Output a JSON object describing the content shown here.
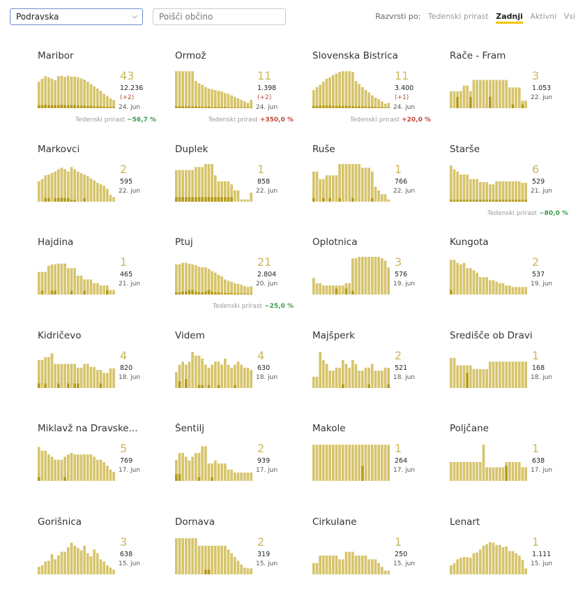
{
  "filters": {
    "region": "Podravska",
    "search_placeholder": "Poišči občino",
    "sort_label": "Razvrsti po:",
    "sort_options": [
      {
        "label": "Tedenski prirast",
        "active": false
      },
      {
        "label": "Zadnji",
        "active": true
      },
      {
        "label": "Aktivni",
        "active": false
      },
      {
        "label": "Vsi",
        "active": false
      }
    ]
  },
  "colors": {
    "bar": "#d6c46c",
    "bar_dark": "#b59a18",
    "accent": "#f5c400"
  },
  "municipalities": [
    {
      "name": "Maribor",
      "active": "43",
      "total": "12.236",
      "delta": "(+2)",
      "date": "24. jun",
      "weekly_label": "Tedenski prirast",
      "weekly_value": "−56,7 %",
      "weekly_dir": "down",
      "bars": [
        0.7,
        0.78,
        0.85,
        0.82,
        0.78,
        0.74,
        0.85,
        0.86,
        0.83,
        0.86,
        0.84,
        0.84,
        0.82,
        0.79,
        0.76,
        0.7,
        0.64,
        0.58,
        0.52,
        0.46,
        0.38,
        0.32,
        0.26,
        0.22
      ],
      "overlay": [
        0.08,
        0.08,
        0.09,
        0.08,
        0.08,
        0.08,
        0.08,
        0.09,
        0.08,
        0.08,
        0.08,
        0.08,
        0.07,
        0.07,
        0.07,
        0.06,
        0.06,
        0.05,
        0.05,
        0.05,
        0.04,
        0.04,
        0.03,
        0.03
      ]
    },
    {
      "name": "Ormož",
      "active": "11",
      "total": "1.398",
      "delta": "(+2)",
      "date": "24. jun",
      "weekly_label": "Tedenski prirast",
      "weekly_value": "+350,0 %",
      "weekly_dir": "up",
      "bars": [
        0.98,
        0.98,
        0.98,
        0.98,
        0.98,
        0.98,
        0.72,
        0.66,
        0.62,
        0.56,
        0.52,
        0.5,
        0.48,
        0.46,
        0.44,
        0.4,
        0.38,
        0.34,
        0.3,
        0.26,
        0.22,
        0.18,
        0.14,
        0.22
      ],
      "overlay": [
        0.05,
        0.05,
        0.05,
        0.05,
        0.05,
        0.05,
        0.05,
        0.04,
        0.04,
        0.04,
        0.04,
        0.03,
        0.03,
        0.03,
        0.03,
        0.03,
        0.02,
        0.02,
        0.02,
        0.02,
        0.02,
        0.02,
        0.02,
        0.02
      ]
    },
    {
      "name": "Slovenska Bistrica",
      "active": "11",
      "total": "3.400",
      "delta": "(+1)",
      "date": "24. jun",
      "weekly_label": "Tedenski prirast",
      "weekly_value": "+20,0 %",
      "weekly_dir": "up",
      "bars": [
        0.48,
        0.56,
        0.62,
        0.7,
        0.78,
        0.82,
        0.88,
        0.92,
        0.96,
        0.98,
        0.98,
        0.98,
        0.96,
        0.72,
        0.64,
        0.56,
        0.48,
        0.42,
        0.34,
        0.28,
        0.24,
        0.18,
        0.12,
        0.14
      ],
      "overlay": [
        0.06,
        0.06,
        0.07,
        0.07,
        0.07,
        0.07,
        0.06,
        0.06,
        0.06,
        0.06,
        0.06,
        0.06,
        0.05,
        0.05,
        0.05,
        0.05,
        0.04,
        0.04,
        0.04,
        0.03,
        0.03,
        0.03,
        0.02,
        0.02
      ]
    },
    {
      "name": "Rače - Fram",
      "active": "3",
      "total": "1.053",
      "date": "22. jun",
      "bars": [
        0.45,
        0.45,
        0.45,
        0.45,
        0.6,
        0.6,
        0.45,
        0.75,
        0.75,
        0.75,
        0.75,
        0.75,
        0.75,
        0.75,
        0.75,
        0.75,
        0.75,
        0.75,
        0.55,
        0.55,
        0.55,
        0.55,
        0.2,
        0.2
      ],
      "overlay": [
        0,
        0,
        0.3,
        0,
        0,
        0,
        0.3,
        0,
        0,
        0,
        0,
        0,
        0.3,
        0,
        0,
        0,
        0,
        0,
        0,
        0.1,
        0,
        0,
        0.1,
        0
      ]
    },
    {
      "name": "Markovci",
      "active": "2",
      "total": "595",
      "date": "22. jun",
      "bars": [
        0.54,
        0.6,
        0.7,
        0.72,
        0.76,
        0.8,
        0.86,
        0.9,
        0.86,
        0.8,
        0.92,
        0.86,
        0.8,
        0.76,
        0.72,
        0.68,
        0.62,
        0.56,
        0.5,
        0.46,
        0.42,
        0.34,
        0.18,
        0.12
      ],
      "overlay": [
        0,
        0,
        0.1,
        0.1,
        0,
        0.1,
        0.1,
        0.1,
        0.1,
        0.1,
        0.05,
        0.05,
        0,
        0,
        0.1,
        0,
        0,
        0,
        0,
        0,
        0,
        0,
        0,
        0
      ]
    },
    {
      "name": "Duplek",
      "active": "1",
      "total": "858",
      "date": "22. jun",
      "bars": [
        0.84,
        0.84,
        0.84,
        0.84,
        0.84,
        0.84,
        0.92,
        0.92,
        0.92,
        1.0,
        1.0,
        1.0,
        0.7,
        0.54,
        0.54,
        0.54,
        0.54,
        0.46,
        0.3,
        0.3,
        0.06,
        0.06,
        0.06,
        0.24
      ],
      "overlay": [
        0.12,
        0.12,
        0.12,
        0.12,
        0.12,
        0.12,
        0.12,
        0.12,
        0.12,
        0.12,
        0.12,
        0.12,
        0.12,
        0.12,
        0.12,
        0.12,
        0.12,
        0.12,
        0,
        0,
        0,
        0,
        0,
        0
      ]
    },
    {
      "name": "Ruše",
      "active": "1",
      "total": "766",
      "date": "22. jun",
      "bars": [
        0.8,
        0.8,
        0.6,
        0.6,
        0.7,
        0.7,
        0.7,
        0.7,
        1.0,
        1.0,
        1.0,
        1.0,
        1.0,
        1.0,
        1.0,
        0.9,
        0.9,
        0.9,
        0.8,
        0.4,
        0.3,
        0.2,
        0.2,
        0.06
      ],
      "overlay": [
        0.1,
        0,
        0,
        0.1,
        0,
        0.1,
        0,
        0,
        0.1,
        0,
        0,
        0,
        0.1,
        0,
        0,
        0,
        0,
        0,
        0.1,
        0,
        0,
        0,
        0,
        0
      ]
    },
    {
      "name": "Starše",
      "active": "6",
      "total": "529",
      "date": "21. jun",
      "weekly_label": "Tedenski prirast",
      "weekly_value": "−80,0 %",
      "weekly_dir": "down",
      "bars": [
        0.96,
        0.86,
        0.8,
        0.72,
        0.72,
        0.72,
        0.6,
        0.6,
        0.6,
        0.52,
        0.52,
        0.52,
        0.46,
        0.46,
        0.54,
        0.54,
        0.54,
        0.54,
        0.54,
        0.54,
        0.54,
        0.54,
        0.5,
        0.5
      ],
      "overlay": [
        0.05,
        0.05,
        0.05,
        0.05,
        0.05,
        0.05,
        0.05,
        0.05,
        0.05,
        0.05,
        0.05,
        0.05,
        0.05,
        0.05,
        0.05,
        0.05,
        0.05,
        0.05,
        0.05,
        0.05,
        0.05,
        0.05,
        0.05,
        0.05
      ]
    },
    {
      "name": "Hajdina",
      "active": "1",
      "total": "465",
      "date": "21. jun",
      "bars": [
        0.6,
        0.6,
        0.6,
        0.76,
        0.8,
        0.8,
        0.82,
        0.82,
        0.82,
        0.7,
        0.7,
        0.7,
        0.5,
        0.5,
        0.4,
        0.4,
        0.4,
        0.3,
        0.3,
        0.24,
        0.24,
        0.24,
        0.12,
        0.12
      ],
      "overlay": [
        0,
        0.1,
        0,
        0,
        0.1,
        0.1,
        0,
        0,
        0,
        0,
        0.1,
        0,
        0,
        0,
        0.1,
        0,
        0,
        0,
        0,
        0,
        0,
        0.12,
        0,
        0
      ]
    },
    {
      "name": "Ptuj",
      "active": "21",
      "total": "2.804",
      "delta": "",
      "date": "20. jun",
      "weekly_label": "Tedenski prirast",
      "weekly_value": "−25,0 %",
      "weekly_dir": "down",
      "bars": [
        0.8,
        0.8,
        0.84,
        0.84,
        0.82,
        0.8,
        0.78,
        0.74,
        0.72,
        0.72,
        0.68,
        0.62,
        0.58,
        0.52,
        0.48,
        0.4,
        0.36,
        0.34,
        0.3,
        0.28,
        0.26,
        0.22,
        0.2,
        0.22
      ],
      "overlay": [
        0.06,
        0.06,
        0.08,
        0.08,
        0.12,
        0.12,
        0.08,
        0.06,
        0.06,
        0.08,
        0.12,
        0.08,
        0.06,
        0.06,
        0.04,
        0.04,
        0.04,
        0.04,
        0.03,
        0.03,
        0.03,
        0.03,
        0.02,
        0.02
      ]
    },
    {
      "name": "Oplotnica",
      "active": "3",
      "total": "576",
      "date": "19. jun",
      "bars": [
        0.44,
        0.3,
        0.3,
        0.24,
        0.24,
        0.24,
        0.24,
        0.24,
        0.24,
        0.24,
        0.3,
        0.3,
        0.96,
        0.96,
        1.0,
        1.0,
        1.0,
        1.0,
        1.0,
        1.0,
        1.0,
        0.96,
        0.9,
        0.72
      ],
      "overlay": [
        0,
        0,
        0,
        0,
        0,
        0,
        0,
        0.16,
        0,
        0,
        0.16,
        0,
        0.1,
        0,
        0,
        0,
        0,
        0,
        0,
        0,
        0,
        0,
        0,
        0
      ]
    },
    {
      "name": "Kungota",
      "active": "2",
      "total": "537",
      "date": "19. jun",
      "bars": [
        0.92,
        0.92,
        0.84,
        0.8,
        0.84,
        0.7,
        0.7,
        0.64,
        0.58,
        0.46,
        0.46,
        0.46,
        0.38,
        0.38,
        0.34,
        0.3,
        0.3,
        0.24,
        0.24,
        0.2,
        0.2,
        0.2,
        0.2,
        0.2
      ],
      "overlay": [
        0.12,
        0,
        0,
        0,
        0,
        0,
        0,
        0,
        0,
        0,
        0,
        0,
        0,
        0,
        0,
        0,
        0,
        0,
        0,
        0,
        0,
        0,
        0,
        0
      ]
    },
    {
      "name": "Kidričevo",
      "active": "4",
      "total": "820",
      "date": "18. jun",
      "bars": [
        0.74,
        0.74,
        0.82,
        0.82,
        0.92,
        0.64,
        0.64,
        0.64,
        0.64,
        0.64,
        0.64,
        0.64,
        0.54,
        0.54,
        0.64,
        0.64,
        0.56,
        0.56,
        0.48,
        0.48,
        0.4,
        0.4,
        0.52,
        0.52
      ],
      "overlay": [
        0.12,
        0,
        0.12,
        0,
        0,
        0,
        0.12,
        0,
        0,
        0.12,
        0,
        0.12,
        0.12,
        0,
        0,
        0,
        0,
        0,
        0,
        0.12,
        0,
        0,
        0,
        0
      ]
    },
    {
      "name": "Videm",
      "active": "4",
      "total": "630",
      "date": "18. jun",
      "bars": [
        0.42,
        0.62,
        0.7,
        0.62,
        0.7,
        0.96,
        0.86,
        0.86,
        0.78,
        0.62,
        0.54,
        0.62,
        0.7,
        0.7,
        0.62,
        0.78,
        0.62,
        0.54,
        0.62,
        0.7,
        0.62,
        0.54,
        0.54,
        0.48
      ],
      "overlay": [
        0,
        0.18,
        0,
        0.24,
        0,
        0,
        0,
        0.08,
        0.08,
        0,
        0.08,
        0,
        0,
        0.08,
        0,
        0,
        0,
        0,
        0.08,
        0,
        0,
        0,
        0,
        0
      ]
    },
    {
      "name": "Majšperk",
      "active": "2",
      "total": "521",
      "date": "18. jun",
      "bars": [
        0.3,
        0.3,
        0.96,
        0.74,
        0.64,
        0.46,
        0.46,
        0.54,
        0.54,
        0.74,
        0.64,
        0.54,
        0.74,
        0.64,
        0.46,
        0.46,
        0.54,
        0.54,
        0.64,
        0.46,
        0.46,
        0.46,
        0.54,
        0.54
      ],
      "overlay": [
        0,
        0,
        0,
        0,
        0,
        0,
        0,
        0,
        0,
        0.1,
        0,
        0,
        0,
        0,
        0,
        0,
        0,
        0.1,
        0,
        0,
        0,
        0,
        0,
        0.1
      ]
    },
    {
      "name": "Središče ob Dravi",
      "active": "1",
      "total": "168",
      "date": "18. jun",
      "bars": [
        0.8,
        0.8,
        0.6,
        0.6,
        0.6,
        0.6,
        0.6,
        0.5,
        0.5,
        0.5,
        0.5,
        0.5,
        0.7,
        0.7,
        0.7,
        0.7,
        0.7,
        0.7,
        0.7,
        0.7,
        0.7,
        0.7,
        0.7,
        0.7
      ],
      "overlay": [
        0,
        0,
        0,
        0,
        0,
        0.4,
        0,
        0,
        0,
        0,
        0,
        0,
        0,
        0,
        0,
        0,
        0,
        0,
        0,
        0,
        0,
        0,
        0,
        0
      ]
    },
    {
      "name": "Miklavž na Dravske...",
      "active": "5",
      "total": "769",
      "date": "17. jun",
      "bars": [
        0.9,
        0.8,
        0.8,
        0.7,
        0.64,
        0.56,
        0.56,
        0.56,
        0.64,
        0.7,
        0.74,
        0.7,
        0.7,
        0.7,
        0.7,
        0.7,
        0.7,
        0.64,
        0.56,
        0.56,
        0.5,
        0.4,
        0.3,
        0.24
      ],
      "overlay": [
        0.1,
        0,
        0,
        0,
        0,
        0,
        0,
        0,
        0.1,
        0,
        0,
        0,
        0,
        0,
        0,
        0,
        0,
        0,
        0,
        0,
        0,
        0,
        0,
        0
      ]
    },
    {
      "name": "Šentilj",
      "active": "2",
      "total": "939",
      "date": "17. jun",
      "bars": [
        0.56,
        0.74,
        0.74,
        0.64,
        0.54,
        0.64,
        0.74,
        0.74,
        0.92,
        0.92,
        0.46,
        0.46,
        0.54,
        0.46,
        0.46,
        0.46,
        0.3,
        0.3,
        0.22,
        0.22,
        0.22,
        0.22,
        0.22,
        0.22
      ],
      "overlay": [
        0.18,
        0.18,
        0,
        0,
        0,
        0,
        0,
        0.1,
        0,
        0,
        0,
        0.1,
        0,
        0,
        0,
        0,
        0,
        0,
        0,
        0,
        0,
        0,
        0,
        0
      ]
    },
    {
      "name": "Makole",
      "active": "1",
      "total": "264",
      "date": "17. jun",
      "bars": [
        0.96,
        0.96,
        0.96,
        0.96,
        0.96,
        0.96,
        0.96,
        0.96,
        0.96,
        0.96,
        0.96,
        0.96,
        0.96,
        0.96,
        0.96,
        0.96,
        0.96,
        0.96,
        0.96,
        0.96,
        0.96,
        0.96,
        0.96,
        0.96
      ],
      "overlay": [
        0,
        0,
        0,
        0,
        0,
        0,
        0,
        0,
        0,
        0,
        0,
        0,
        0,
        0,
        0,
        0.4,
        0,
        0,
        0,
        0,
        0,
        0,
        0,
        0
      ]
    },
    {
      "name": "Poljčane",
      "active": "1",
      "total": "638",
      "date": "17. jun",
      "bars": [
        0.5,
        0.5,
        0.5,
        0.5,
        0.5,
        0.5,
        0.5,
        0.5,
        0.5,
        0.5,
        0.96,
        0.36,
        0.36,
        0.36,
        0.36,
        0.36,
        0.36,
        0.5,
        0.5,
        0.5,
        0.5,
        0.5,
        0.36,
        0.36
      ],
      "overlay": [
        0,
        0,
        0,
        0,
        0,
        0,
        0,
        0,
        0,
        0,
        0,
        0,
        0,
        0,
        0,
        0,
        0,
        0.4,
        0,
        0,
        0,
        0,
        0,
        0
      ]
    },
    {
      "name": "Gorišnica",
      "active": "3",
      "total": "638",
      "date": "15. jun",
      "bars": [
        0.2,
        0.24,
        0.34,
        0.36,
        0.54,
        0.4,
        0.5,
        0.6,
        0.6,
        0.72,
        0.84,
        0.76,
        0.7,
        0.64,
        0.76,
        0.56,
        0.48,
        0.66,
        0.56,
        0.4,
        0.34,
        0.24,
        0.18,
        0.12
      ],
      "overlay": [
        0,
        0,
        0,
        0,
        0,
        0,
        0,
        0,
        0,
        0,
        0,
        0,
        0,
        0,
        0,
        0,
        0,
        0,
        0,
        0,
        0,
        0,
        0,
        0
      ]
    },
    {
      "name": "Dornava",
      "active": "2",
      "total": "319",
      "date": "15. jun",
      "bars": [
        0.96,
        0.96,
        0.96,
        0.96,
        0.96,
        0.96,
        0.96,
        0.76,
        0.76,
        0.76,
        0.76,
        0.76,
        0.76,
        0.76,
        0.76,
        0.76,
        0.66,
        0.56,
        0.46,
        0.36,
        0.26,
        0.18,
        0.16,
        0.16
      ],
      "overlay": [
        0,
        0,
        0,
        0,
        0,
        0,
        0,
        0,
        0,
        0.12,
        0.12,
        0,
        0,
        0,
        0,
        0,
        0,
        0,
        0,
        0,
        0,
        0,
        0,
        0
      ]
    },
    {
      "name": "Cirkulane",
      "active": "1",
      "total": "250",
      "date": "15. jun",
      "bars": [
        0.3,
        0.3,
        0.5,
        0.5,
        0.5,
        0.5,
        0.5,
        0.5,
        0.4,
        0.4,
        0.6,
        0.6,
        0.6,
        0.5,
        0.5,
        0.5,
        0.5,
        0.4,
        0.4,
        0.4,
        0.3,
        0.2,
        0.1,
        0.1
      ],
      "overlay": [
        0,
        0,
        0,
        0,
        0,
        0,
        0,
        0,
        0,
        0,
        0,
        0,
        0,
        0,
        0,
        0,
        0,
        0,
        0,
        0,
        0,
        0,
        0,
        0
      ]
    },
    {
      "name": "Lenart",
      "active": "1",
      "total": "1.111",
      "date": "15. jun",
      "bars": [
        0.24,
        0.3,
        0.4,
        0.44,
        0.46,
        0.46,
        0.44,
        0.56,
        0.58,
        0.66,
        0.76,
        0.8,
        0.86,
        0.84,
        0.78,
        0.78,
        0.72,
        0.74,
        0.62,
        0.62,
        0.56,
        0.5,
        0.38,
        0.16
      ],
      "overlay": [
        0,
        0,
        0,
        0,
        0,
        0,
        0,
        0,
        0,
        0,
        0,
        0,
        0,
        0,
        0,
        0,
        0,
        0,
        0,
        0,
        0,
        0,
        0,
        0
      ]
    }
  ]
}
